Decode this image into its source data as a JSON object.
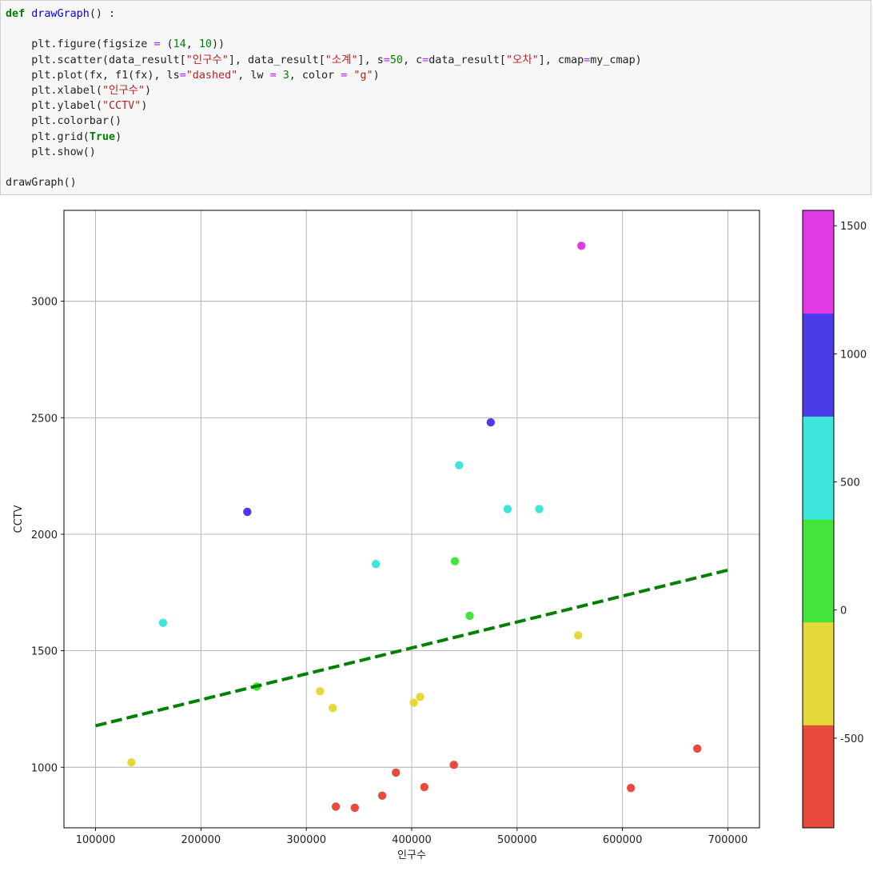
{
  "code": {
    "def_keyword": "def",
    "func_name": "drawGraph",
    "def_rest": "() :",
    "lines": [
      [
        [
          "",
          "plt.figure(figsize "
        ],
        [
          "op",
          "="
        ],
        [
          "",
          " ("
        ],
        [
          "num",
          "14"
        ],
        [
          "",
          ", "
        ],
        [
          "num",
          "10"
        ],
        [
          "",
          "))"
        ]
      ],
      [
        [
          "",
          "plt.scatter(data_result["
        ],
        [
          "str",
          "\"인구수\""
        ],
        [
          "",
          "], data_result["
        ],
        [
          "str",
          "\"소계\""
        ],
        [
          "",
          "], s"
        ],
        [
          "op",
          "="
        ],
        [
          "num",
          "50"
        ],
        [
          "",
          ", c"
        ],
        [
          "op",
          "="
        ],
        [
          "",
          "data_result["
        ],
        [
          "str",
          "\"오차\""
        ],
        [
          "",
          "], cmap"
        ],
        [
          "op",
          "="
        ],
        [
          "",
          "my_cmap)"
        ]
      ],
      [
        [
          "",
          "plt.plot(fx, f1(fx), ls"
        ],
        [
          "op",
          "="
        ],
        [
          "str",
          "\"dashed\""
        ],
        [
          "",
          ", lw "
        ],
        [
          "op",
          "="
        ],
        [
          "",
          " "
        ],
        [
          "num",
          "3"
        ],
        [
          "",
          ", color "
        ],
        [
          "op",
          "="
        ],
        [
          "",
          " "
        ],
        [
          "str",
          "\"g\""
        ],
        [
          "",
          ")"
        ]
      ],
      [
        [
          "",
          "plt.xlabel("
        ],
        [
          "str",
          "\"인구수\""
        ],
        [
          "",
          ")"
        ]
      ],
      [
        [
          "",
          "plt.ylabel("
        ],
        [
          "str",
          "\"CCTV\""
        ],
        [
          "",
          ")"
        ]
      ],
      [
        [
          "",
          "plt.colorbar()"
        ]
      ],
      [
        [
          "",
          "plt.grid("
        ],
        [
          "builtin",
          "True"
        ],
        [
          "",
          ")"
        ]
      ],
      [
        [
          "",
          "plt.show()"
        ]
      ]
    ],
    "call_line": "drawGraph()"
  },
  "chart_data": {
    "type": "scatter",
    "xlabel": "인구수",
    "ylabel": "CCTV",
    "xlim": [
      70000,
      730000
    ],
    "ylim": [
      740,
      3390
    ],
    "xticks": [
      100000,
      200000,
      300000,
      400000,
      500000,
      600000,
      700000
    ],
    "yticks": [
      1000,
      1500,
      2000,
      2500,
      3000
    ],
    "grid": true,
    "points": [
      {
        "x": 561000,
        "y": 3238,
        "c": 1500
      },
      {
        "x": 475000,
        "y": 2480,
        "c": 1000
      },
      {
        "x": 244000,
        "y": 2096,
        "c": 1000
      },
      {
        "x": 445000,
        "y": 2296,
        "c": 600
      },
      {
        "x": 491000,
        "y": 2108,
        "c": 600
      },
      {
        "x": 521000,
        "y": 2108,
        "c": 600
      },
      {
        "x": 366000,
        "y": 1872,
        "c": 500
      },
      {
        "x": 164000,
        "y": 1620,
        "c": 500
      },
      {
        "x": 441000,
        "y": 1884,
        "c": 200
      },
      {
        "x": 455000,
        "y": 1650,
        "c": 100
      },
      {
        "x": 253000,
        "y": 1346,
        "c": 50
      },
      {
        "x": 558000,
        "y": 1566,
        "c": -200
      },
      {
        "x": 313000,
        "y": 1326,
        "c": -100
      },
      {
        "x": 325000,
        "y": 1254,
        "c": -200
      },
      {
        "x": 402000,
        "y": 1277,
        "c": -250
      },
      {
        "x": 408000,
        "y": 1302,
        "c": -200
      },
      {
        "x": 134000,
        "y": 1021,
        "c": -400
      },
      {
        "x": 671000,
        "y": 1080,
        "c": -700
      },
      {
        "x": 440000,
        "y": 1010,
        "c": -500
      },
      {
        "x": 385000,
        "y": 977,
        "c": -600
      },
      {
        "x": 412000,
        "y": 915,
        "c": -600
      },
      {
        "x": 608000,
        "y": 911,
        "c": -800
      },
      {
        "x": 372000,
        "y": 878,
        "c": -650
      },
      {
        "x": 328000,
        "y": 831,
        "c": -650
      },
      {
        "x": 346000,
        "y": 826,
        "c": -700
      }
    ],
    "trend_line": {
      "x": [
        100000,
        700000
      ],
      "y": [
        1178,
        1846
      ],
      "style": "dashed",
      "color": "#008000"
    },
    "colorbar": {
      "min": -850,
      "max": 1560,
      "ticks": [
        -500,
        0,
        500,
        1000,
        1500
      ],
      "bands": [
        "#e84b3c",
        "#e5d83a",
        "#44e53a",
        "#3ce6da",
        "#4a3ce6",
        "#e03ae5"
      ]
    }
  }
}
